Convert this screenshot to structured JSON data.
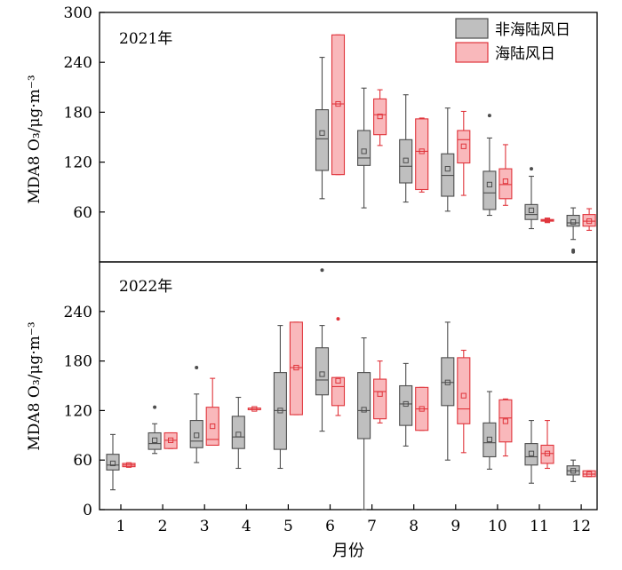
{
  "chart_data": {
    "type": "box",
    "xlabel": "月份",
    "categories": [
      "1",
      "2",
      "3",
      "4",
      "5",
      "6",
      "7",
      "8",
      "9",
      "10",
      "11",
      "12"
    ],
    "legend": {
      "placement": "top-right",
      "entries": [
        {
          "name": "非海陆风日",
          "color": "#bfbfbf",
          "stroke": "#4d4d4d"
        },
        {
          "name": "海陆风日",
          "color": "#f9b8bb",
          "stroke": "#e0343b"
        }
      ]
    },
    "panels": [
      {
        "label": "2021年",
        "ylabel": "MDA8 O₃/μg·m⁻³",
        "ylim": [
          0,
          300
        ],
        "yticks": [
          60,
          120,
          180,
          240,
          300
        ],
        "series": [
          {
            "name": "非海陆风日",
            "boxes": [
              {
                "month": 6,
                "whislo": 76,
                "q1": 110,
                "med": 148,
                "q3": 183,
                "whishi": 246,
                "mean": 155,
                "fliers": []
              },
              {
                "month": 7,
                "whislo": 65,
                "q1": 116,
                "med": 125,
                "q3": 158,
                "whishi": 209,
                "mean": 133,
                "fliers": []
              },
              {
                "month": 8,
                "whislo": 72,
                "q1": 95,
                "med": 115,
                "q3": 147,
                "whishi": 201,
                "mean": 122,
                "fliers": []
              },
              {
                "month": 9,
                "whislo": 61,
                "q1": 79,
                "med": 104,
                "q3": 130,
                "whishi": 185,
                "mean": 112,
                "fliers": []
              },
              {
                "month": 10,
                "whislo": 56,
                "q1": 63,
                "med": 83,
                "q3": 109,
                "whishi": 149,
                "mean": 93,
                "fliers": [
                  176
                ]
              },
              {
                "month": 11,
                "whislo": 40,
                "q1": 51,
                "med": 57,
                "q3": 69,
                "whishi": 103,
                "mean": 62,
                "fliers": [
                  112
                ]
              },
              {
                "month": 12,
                "whislo": 27,
                "q1": 43,
                "med": 47,
                "q3": 56,
                "whishi": 65,
                "mean": 48,
                "fliers": [
                  14,
                  12
                ]
              }
            ]
          },
          {
            "name": "海陆风日",
            "boxes": [
              {
                "month": 6,
                "whislo": 105,
                "q1": 105,
                "med": 190,
                "q3": 273,
                "whishi": 273,
                "mean": 190,
                "fliers": []
              },
              {
                "month": 7,
                "whislo": 140,
                "q1": 153,
                "med": 177,
                "q3": 196,
                "whishi": 207,
                "mean": 175,
                "fliers": []
              },
              {
                "month": 8,
                "whislo": 84,
                "q1": 87,
                "med": 133,
                "q3": 172,
                "whishi": 173,
                "mean": 133,
                "fliers": []
              },
              {
                "month": 9,
                "whislo": 80,
                "q1": 119,
                "med": 147,
                "q3": 158,
                "whishi": 181,
                "mean": 139,
                "fliers": []
              },
              {
                "month": 10,
                "whislo": 68,
                "q1": 76,
                "med": 93,
                "q3": 112,
                "whishi": 141,
                "mean": 97,
                "fliers": []
              },
              {
                "month": 11,
                "whislo": 48,
                "q1": 49,
                "med": 50,
                "q3": 51,
                "whishi": 52,
                "mean": 50,
                "fliers": []
              },
              {
                "month": 12,
                "whislo": 38,
                "q1": 43,
                "med": 49,
                "q3": 57,
                "whishi": 64,
                "mean": 49,
                "fliers": []
              }
            ]
          }
        ]
      },
      {
        "label": "2022年",
        "ylabel": "MDA8 O₃/μg·m⁻³",
        "ylim": [
          0,
          300
        ],
        "yticks": [
          0,
          60,
          120,
          180,
          240
        ],
        "series": [
          {
            "name": "非海陆风日",
            "boxes": [
              {
                "month": 1,
                "whislo": 24,
                "q1": 48,
                "med": 54,
                "q3": 67,
                "whishi": 91,
                "mean": 56,
                "fliers": []
              },
              {
                "month": 2,
                "whislo": 68,
                "q1": 73,
                "med": 80,
                "q3": 93,
                "whishi": 104,
                "mean": 84,
                "fliers": [
                  124
                ]
              },
              {
                "month": 3,
                "whislo": 57,
                "q1": 75,
                "med": 83,
                "q3": 108,
                "whishi": 140,
                "mean": 90,
                "fliers": [
                  172
                ]
              },
              {
                "month": 4,
                "whislo": 50,
                "q1": 74,
                "med": 88,
                "q3": 113,
                "whishi": 136,
                "mean": 91,
                "fliers": []
              },
              {
                "month": 5,
                "whislo": 50,
                "q1": 73,
                "med": 120,
                "q3": 166,
                "whishi": 223,
                "mean": 120,
                "fliers": []
              },
              {
                "month": 6,
                "whislo": 95,
                "q1": 139,
                "med": 157,
                "q3": 196,
                "whishi": 223,
                "mean": 164,
                "fliers": [
                  290
                ]
              },
              {
                "month": 7,
                "whislo": 0,
                "q1": 86,
                "med": 120,
                "q3": 166,
                "whishi": 208,
                "mean": 121,
                "fliers": []
              },
              {
                "month": 8,
                "whislo": 77,
                "q1": 102,
                "med": 128,
                "q3": 150,
                "whishi": 177,
                "mean": 128,
                "fliers": []
              },
              {
                "month": 9,
                "whislo": 60,
                "q1": 126,
                "med": 154,
                "q3": 184,
                "whishi": 227,
                "mean": 154,
                "fliers": []
              },
              {
                "month": 10,
                "whislo": 49,
                "q1": 64,
                "med": 81,
                "q3": 105,
                "whishi": 143,
                "mean": 85,
                "fliers": []
              },
              {
                "month": 11,
                "whislo": 32,
                "q1": 54,
                "med": 64,
                "q3": 80,
                "whishi": 108,
                "mean": 68,
                "fliers": []
              },
              {
                "month": 12,
                "whislo": 34,
                "q1": 42,
                "med": 47,
                "q3": 53,
                "whishi": 60,
                "mean": 47,
                "fliers": []
              }
            ]
          },
          {
            "name": "海陆风日",
            "boxes": [
              {
                "month": 1,
                "whislo": 52,
                "q1": 52,
                "med": 54,
                "q3": 56,
                "whishi": 56,
                "mean": 54,
                "fliers": []
              },
              {
                "month": 2,
                "whislo": 74,
                "q1": 74,
                "med": 84,
                "q3": 93,
                "whishi": 93,
                "mean": 84,
                "fliers": []
              },
              {
                "month": 3,
                "whislo": 78,
                "q1": 78,
                "med": 85,
                "q3": 124,
                "whishi": 159,
                "mean": 101,
                "fliers": []
              },
              {
                "month": 4,
                "whislo": 121,
                "q1": 121,
                "med": 121,
                "q3": 123,
                "whishi": 123,
                "mean": 122,
                "fliers": []
              },
              {
                "month": 5,
                "whislo": 115,
                "q1": 115,
                "med": 172,
                "q3": 227,
                "whishi": 227,
                "mean": 172,
                "fliers": []
              },
              {
                "month": 6,
                "whislo": 114,
                "q1": 126,
                "med": 149,
                "q3": 160,
                "whishi": 160,
                "mean": 156,
                "fliers": [
                  231
                ]
              },
              {
                "month": 7,
                "whislo": 105,
                "q1": 110,
                "med": 143,
                "q3": 158,
                "whishi": 180,
                "mean": 140,
                "fliers": []
              },
              {
                "month": 8,
                "whislo": 96,
                "q1": 96,
                "med": 122,
                "q3": 148,
                "whishi": 148,
                "mean": 122,
                "fliers": []
              },
              {
                "month": 9,
                "whislo": 69,
                "q1": 104,
                "med": 122,
                "q3": 184,
                "whishi": 193,
                "mean": 138,
                "fliers": []
              },
              {
                "month": 10,
                "whislo": 65,
                "q1": 82,
                "med": 111,
                "q3": 133,
                "whishi": 134,
                "mean": 107,
                "fliers": []
              },
              {
                "month": 11,
                "whislo": 50,
                "q1": 56,
                "med": 68,
                "q3": 78,
                "whishi": 108,
                "mean": 68,
                "fliers": []
              },
              {
                "month": 12,
                "whislo": 40,
                "q1": 40,
                "med": 43,
                "q3": 47,
                "whishi": 47,
                "mean": 43,
                "fliers": []
              }
            ]
          }
        ]
      }
    ]
  }
}
